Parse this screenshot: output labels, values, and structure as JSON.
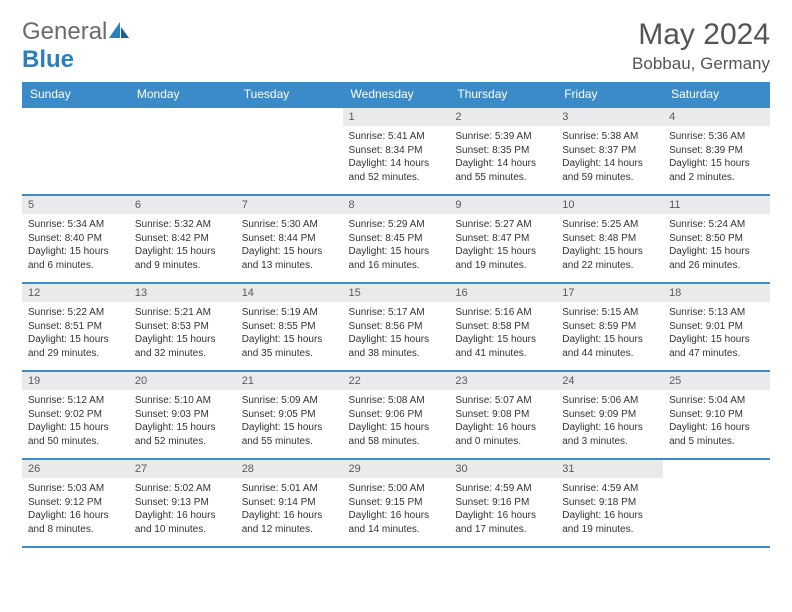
{
  "logo": {
    "text1": "General",
    "text2": "Blue"
  },
  "title": {
    "month": "May 2024",
    "location": "Bobbau, Germany"
  },
  "colors": {
    "header_bg": "#3b8bc9",
    "header_text": "#ffffff",
    "daynum_bg": "#e9eaeb",
    "border": "#3b8bc9",
    "body_text": "#333333",
    "title_text": "#555555",
    "logo_gray": "#6b6b6b",
    "logo_blue": "#2a7fbf"
  },
  "weekdays": [
    "Sunday",
    "Monday",
    "Tuesday",
    "Wednesday",
    "Thursday",
    "Friday",
    "Saturday"
  ],
  "weeks": [
    [
      null,
      null,
      null,
      {
        "d": "1",
        "sr": "5:41 AM",
        "ss": "8:34 PM",
        "dl": "14 hours and 52 minutes."
      },
      {
        "d": "2",
        "sr": "5:39 AM",
        "ss": "8:35 PM",
        "dl": "14 hours and 55 minutes."
      },
      {
        "d": "3",
        "sr": "5:38 AM",
        "ss": "8:37 PM",
        "dl": "14 hours and 59 minutes."
      },
      {
        "d": "4",
        "sr": "5:36 AM",
        "ss": "8:39 PM",
        "dl": "15 hours and 2 minutes."
      }
    ],
    [
      {
        "d": "5",
        "sr": "5:34 AM",
        "ss": "8:40 PM",
        "dl": "15 hours and 6 minutes."
      },
      {
        "d": "6",
        "sr": "5:32 AM",
        "ss": "8:42 PM",
        "dl": "15 hours and 9 minutes."
      },
      {
        "d": "7",
        "sr": "5:30 AM",
        "ss": "8:44 PM",
        "dl": "15 hours and 13 minutes."
      },
      {
        "d": "8",
        "sr": "5:29 AM",
        "ss": "8:45 PM",
        "dl": "15 hours and 16 minutes."
      },
      {
        "d": "9",
        "sr": "5:27 AM",
        "ss": "8:47 PM",
        "dl": "15 hours and 19 minutes."
      },
      {
        "d": "10",
        "sr": "5:25 AM",
        "ss": "8:48 PM",
        "dl": "15 hours and 22 minutes."
      },
      {
        "d": "11",
        "sr": "5:24 AM",
        "ss": "8:50 PM",
        "dl": "15 hours and 26 minutes."
      }
    ],
    [
      {
        "d": "12",
        "sr": "5:22 AM",
        "ss": "8:51 PM",
        "dl": "15 hours and 29 minutes."
      },
      {
        "d": "13",
        "sr": "5:21 AM",
        "ss": "8:53 PM",
        "dl": "15 hours and 32 minutes."
      },
      {
        "d": "14",
        "sr": "5:19 AM",
        "ss": "8:55 PM",
        "dl": "15 hours and 35 minutes."
      },
      {
        "d": "15",
        "sr": "5:17 AM",
        "ss": "8:56 PM",
        "dl": "15 hours and 38 minutes."
      },
      {
        "d": "16",
        "sr": "5:16 AM",
        "ss": "8:58 PM",
        "dl": "15 hours and 41 minutes."
      },
      {
        "d": "17",
        "sr": "5:15 AM",
        "ss": "8:59 PM",
        "dl": "15 hours and 44 minutes."
      },
      {
        "d": "18",
        "sr": "5:13 AM",
        "ss": "9:01 PM",
        "dl": "15 hours and 47 minutes."
      }
    ],
    [
      {
        "d": "19",
        "sr": "5:12 AM",
        "ss": "9:02 PM",
        "dl": "15 hours and 50 minutes."
      },
      {
        "d": "20",
        "sr": "5:10 AM",
        "ss": "9:03 PM",
        "dl": "15 hours and 52 minutes."
      },
      {
        "d": "21",
        "sr": "5:09 AM",
        "ss": "9:05 PM",
        "dl": "15 hours and 55 minutes."
      },
      {
        "d": "22",
        "sr": "5:08 AM",
        "ss": "9:06 PM",
        "dl": "15 hours and 58 minutes."
      },
      {
        "d": "23",
        "sr": "5:07 AM",
        "ss": "9:08 PM",
        "dl": "16 hours and 0 minutes."
      },
      {
        "d": "24",
        "sr": "5:06 AM",
        "ss": "9:09 PM",
        "dl": "16 hours and 3 minutes."
      },
      {
        "d": "25",
        "sr": "5:04 AM",
        "ss": "9:10 PM",
        "dl": "16 hours and 5 minutes."
      }
    ],
    [
      {
        "d": "26",
        "sr": "5:03 AM",
        "ss": "9:12 PM",
        "dl": "16 hours and 8 minutes."
      },
      {
        "d": "27",
        "sr": "5:02 AM",
        "ss": "9:13 PM",
        "dl": "16 hours and 10 minutes."
      },
      {
        "d": "28",
        "sr": "5:01 AM",
        "ss": "9:14 PM",
        "dl": "16 hours and 12 minutes."
      },
      {
        "d": "29",
        "sr": "5:00 AM",
        "ss": "9:15 PM",
        "dl": "16 hours and 14 minutes."
      },
      {
        "d": "30",
        "sr": "4:59 AM",
        "ss": "9:16 PM",
        "dl": "16 hours and 17 minutes."
      },
      {
        "d": "31",
        "sr": "4:59 AM",
        "ss": "9:18 PM",
        "dl": "16 hours and 19 minutes."
      },
      null
    ]
  ],
  "labels": {
    "sunrise": "Sunrise:",
    "sunset": "Sunset:",
    "daylight": "Daylight:"
  }
}
